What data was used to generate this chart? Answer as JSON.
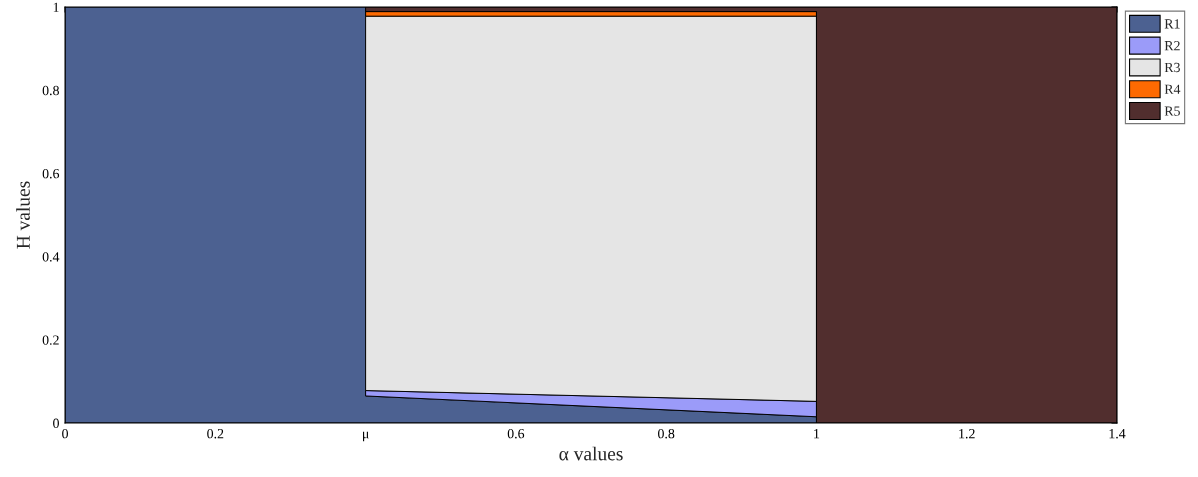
{
  "chart_data": {
    "type": "area",
    "stacked": true,
    "xlabel": "α values",
    "ylabel": "H values",
    "x": [
      0,
      0.4,
      0.4,
      1,
      1,
      1.4
    ],
    "series": [
      {
        "name": "R1",
        "color": "#4c6191",
        "values": [
          1,
          1,
          0.065,
          0.015,
          null,
          null
        ]
      },
      {
        "name": "R2",
        "color": "#9b9bf9",
        "values": [
          null,
          null,
          0.013,
          0.037,
          null,
          null
        ]
      },
      {
        "name": "R3",
        "color": "#e5e5e5",
        "values": [
          null,
          null,
          0.9,
          0.926,
          null,
          null
        ]
      },
      {
        "name": "R4",
        "color": "#fd6a02",
        "values": [
          null,
          null,
          0.011,
          0.011,
          null,
          null
        ]
      },
      {
        "name": "R5",
        "color": "#512e2e",
        "values": [
          null,
          null,
          0.011,
          0.011,
          1,
          1
        ]
      }
    ],
    "xlim": [
      0,
      1.4
    ],
    "ylim": [
      0,
      1
    ],
    "xticks": [
      0,
      0.2,
      {
        "value": 0.4,
        "label": "μ"
      },
      0.6,
      0.8,
      1,
      1.2,
      1.4
    ],
    "yticks": [
      0,
      0.2,
      0.4,
      0.6,
      0.8,
      1
    ],
    "legend": "top right"
  }
}
